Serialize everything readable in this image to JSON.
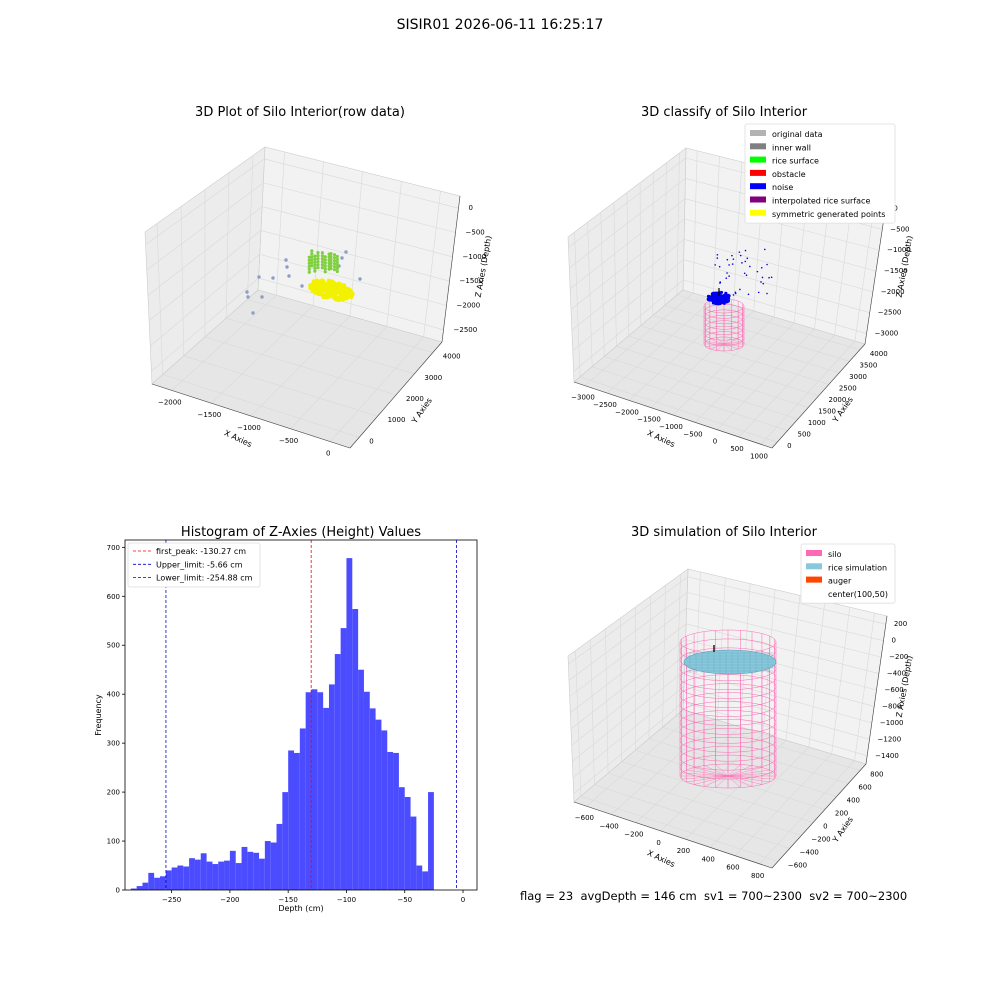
{
  "figure_title": "SISIR01 2026-06-11 16:25:17",
  "status_text": "flag = 23  avgDepth = 146 cm  sv1 = 700~2300  sv2 = 700~2300",
  "colors": {
    "pane": "#f2f2f2",
    "grid": "#d9d9d9",
    "histogram_bar": "#4b4bff",
    "first_peak_line": "#ff0000",
    "limit_line": "#0000cc",
    "silo": "#ff69b4",
    "rice_simulation": "#87c8dc",
    "auger": "#ff4500",
    "raw_cluster_yellow": "#f2f200",
    "raw_cluster_green": "#7fd03f",
    "raw_scatter": "#8e9ec7",
    "noise": "#0000ee"
  },
  "chart_data": [
    {
      "type": "scatter",
      "projection": "3d",
      "title": "3D Plot of Silo Interior(row data)",
      "xlabel": "X Axies",
      "ylabel": "Y Axies",
      "zlabel": "Z Axies (Depth)",
      "x_ticks": [
        "−2000",
        "−1500",
        "−1000",
        "−500",
        "0"
      ],
      "y_ticks": [
        "0",
        "1000",
        "2000",
        "3000",
        "4000"
      ],
      "z_ticks": [
        "0",
        "−500",
        "−1000",
        "−1500",
        "−2000",
        "−2500"
      ],
      "xlim": [
        -2300,
        200
      ],
      "ylim": [
        0,
        4200
      ],
      "zlim": [
        -2800,
        100
      ],
      "grid": true
    },
    {
      "type": "scatter",
      "projection": "3d",
      "title": "3D classify of Silo Interior",
      "xlabel": "X Axies",
      "ylabel": "Y Axies",
      "zlabel": "Z Axies (Depth)",
      "x_ticks": [
        "−3000",
        "−2500",
        "−2000",
        "−1500",
        "−1000",
        "−500",
        "0",
        "500",
        "1000"
      ],
      "y_ticks": [
        "0",
        "500",
        "1000",
        "1500",
        "2000",
        "2500",
        "3000",
        "3500",
        "4000"
      ],
      "z_ticks": [
        "0",
        "−500",
        "−1000",
        "−1500",
        "−2000",
        "−2500",
        "−3000"
      ],
      "xlim": [
        -3100,
        1100
      ],
      "ylim": [
        0,
        4100
      ],
      "zlim": [
        -3300,
        100
      ],
      "legend_position": "top-right",
      "legend": [
        {
          "label": "original data",
          "color": "#b3b3b3"
        },
        {
          "label": "inner wall",
          "color": "#808080"
        },
        {
          "label": "rice surface",
          "color": "#00ff00"
        },
        {
          "label": "obstacle",
          "color": "#ff0000"
        },
        {
          "label": "noise",
          "color": "#0000ff"
        },
        {
          "label": "interpolated rice surface",
          "color": "#800080"
        },
        {
          "label": "symmetric generated points",
          "color": "#ffff00"
        }
      ],
      "grid": true
    },
    {
      "type": "bar",
      "title": "Histogram of Z-Axies (Height) Values",
      "xlabel": "Depth (cm)",
      "ylabel": "Frequency",
      "xlim": [
        -290,
        12
      ],
      "ylim": [
        0,
        715
      ],
      "x_ticks": [
        -250,
        -200,
        -150,
        -100,
        -50,
        0
      ],
      "y_ticks": [
        0,
        100,
        200,
        300,
        400,
        500,
        600,
        700
      ],
      "bin_width": 5,
      "bin_starts": [
        -285,
        -280,
        -275,
        -270,
        -265,
        -260,
        -255,
        -250,
        -245,
        -240,
        -235,
        -230,
        -225,
        -220,
        -215,
        -210,
        -205,
        -200,
        -195,
        -190,
        -185,
        -180,
        -175,
        -170,
        -165,
        -160,
        -155,
        -150,
        -145,
        -140,
        -135,
        -130,
        -125,
        -120,
        -115,
        -110,
        -105,
        -100,
        -95,
        -90,
        -85,
        -80,
        -75,
        -70,
        -65,
        -60,
        -55,
        -50,
        -45,
        -40,
        -35,
        -30,
        -25,
        -20,
        -15,
        -10,
        -5,
        0
      ],
      "values": [
        3,
        8,
        15,
        35,
        25,
        28,
        40,
        46,
        50,
        48,
        65,
        62,
        75,
        58,
        53,
        58,
        60,
        80,
        55,
        88,
        78,
        76,
        64,
        100,
        97,
        135,
        200,
        285,
        280,
        330,
        404,
        410,
        404,
        372,
        420,
        482,
        535,
        678,
        574,
        450,
        405,
        371,
        348,
        326,
        282,
        280,
        210,
        190,
        150,
        50,
        38,
        200,
        0,
        0,
        0,
        0,
        0,
        0
      ],
      "reference_lines": [
        {
          "name": "first_peak: -130.27 cm",
          "x": -130.27,
          "color": "#ff0000",
          "style": "dashed"
        },
        {
          "name": "Upper_limit: -5.66 cm",
          "x": -5.66,
          "color": "#0000cc",
          "style": "dashed"
        },
        {
          "name": "Lower_limit: -254.88 cm",
          "x": -254.88,
          "color": "#0000cc",
          "style": "dashed"
        }
      ],
      "legend_position": "top-left",
      "grid": false
    },
    {
      "type": "surface",
      "projection": "3d",
      "title": "3D simulation of Silo Interior",
      "xlabel": "X Axies",
      "ylabel": "Y Axies",
      "zlabel": "Z Axies (Depth)",
      "x_ticks": [
        "−600",
        "−400",
        "−200",
        "0",
        "200",
        "400",
        "600",
        "800"
      ],
      "y_ticks": [
        "−600",
        "−400",
        "−200",
        "0",
        "200",
        "400",
        "600",
        "800"
      ],
      "z_ticks": [
        "200",
        "0",
        "−200",
        "−400",
        "−600",
        "−800",
        "−1000",
        "−1200",
        "−1400"
      ],
      "xlim": [
        -700,
        900
      ],
      "ylim": [
        -700,
        900
      ],
      "zlim": [
        -1500,
        250
      ],
      "legend_position": "top-right",
      "legend": [
        {
          "label": "silo",
          "color": "#ff69b4"
        },
        {
          "label": "rice simulation",
          "color": "#87c8dc"
        },
        {
          "label": "auger",
          "color": "#ff4500"
        },
        {
          "label": "center(100,50)",
          "color": ""
        }
      ],
      "grid": true
    }
  ]
}
